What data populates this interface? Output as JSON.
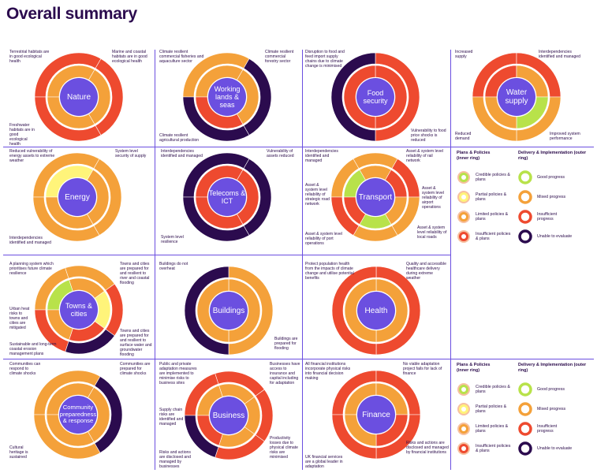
{
  "page_title": "Overall summary",
  "colors": {
    "good": "#b8e24a",
    "partial": "#fff47a",
    "limited": "#f4a13a",
    "insufficient": "#ee4a2f",
    "unable": "#2b0b4e",
    "core": "#6b4fe0"
  },
  "legends": [
    {
      "plans_head": "Plans & Policies (inner ring)",
      "delivery_head": "Delivery & Implementation (outer ring)",
      "plans": [
        {
          "label": "Credible policies & plans",
          "status": "good"
        },
        {
          "label": "Partial policies & plans",
          "status": "partial"
        },
        {
          "label": "Limited policies & plans",
          "status": "limited"
        },
        {
          "label": "Insufficient policies & plans",
          "status": "insufficient"
        }
      ],
      "delivery": [
        {
          "label": "Good progress",
          "status": "good"
        },
        {
          "label": "Mixed progress",
          "status": "limited"
        },
        {
          "label": "Insufficient progress",
          "status": "insufficient"
        },
        {
          "label": "Unable to evaluate",
          "status": "unable"
        }
      ]
    },
    {
      "plans_head": "Plans & Policies (inner ring)",
      "delivery_head": "Delivery & Implementation (outer ring)",
      "plans": [
        {
          "label": "Credible policies & plans",
          "status": "good"
        },
        {
          "label": "Partial policies & plans",
          "status": "partial"
        },
        {
          "label": "Limited policies & plans",
          "status": "limited"
        },
        {
          "label": "Insufficient policies & plans",
          "status": "insufficient"
        }
      ],
      "delivery": [
        {
          "label": "Good progress",
          "status": "good"
        },
        {
          "label": "Mixed progress",
          "status": "limited"
        },
        {
          "label": "Insufficient progress",
          "status": "insufficient"
        },
        {
          "label": "Unable to evaluate",
          "status": "unable"
        }
      ]
    }
  ],
  "chart_data": [
    {
      "type": "radial-status",
      "title": "Nature",
      "outcomes": [
        "Terrestrial habitats are in good ecological health",
        "Marine and coastal habitats are in good ecological health",
        "Freshwater habitats are in good ecological health"
      ],
      "inner": [
        "limited",
        "limited",
        "limited"
      ],
      "outer": [
        "insufficient",
        "insufficient",
        "insufficient"
      ]
    },
    {
      "type": "radial-status",
      "title": "Working lands & seas",
      "outcomes": [
        "Climate resilient commercial fisheries and aquaculture sector",
        "Climate resilient commercial forestry sector",
        "Climate resilient agricultural production"
      ],
      "inner": [
        "limited",
        "limited",
        "insufficient"
      ],
      "outer": [
        "limited",
        "unable",
        "unable"
      ]
    },
    {
      "type": "radial-status",
      "title": "Food security",
      "outcomes": [
        "Disruption to food and feed import supply chains due to climate change is minimised",
        "Vulnerability to food price shocks is reduced"
      ],
      "inner": [
        "insufficient",
        "insufficient"
      ],
      "outer": [
        "insufficient",
        "unable"
      ]
    },
    {
      "type": "radial-status",
      "title": "Water supply",
      "outcomes": [
        "Increased supply",
        "Interdependencies identified and managed",
        "Improved system performance",
        "Reduced demand"
      ],
      "inner": [
        "insufficient",
        "limited",
        "good",
        "limited"
      ],
      "outer": [
        "insufficient",
        "insufficient",
        "limited",
        "limited"
      ]
    },
    {
      "type": "radial-status",
      "title": "Energy",
      "outcomes": [
        "Reduced vulnerability of energy assets to extreme weather",
        "System level security of supply",
        "Interdependencies identified and managed"
      ],
      "inner": [
        "partial",
        "limited",
        "limited"
      ],
      "outer": [
        "limited",
        "limited",
        "limited"
      ]
    },
    {
      "type": "radial-status",
      "title": "Telecoms & ICT",
      "outcomes": [
        "Vulnerability of assets reduced",
        "System level resilience",
        "Interdependencies identified and managed"
      ],
      "inner": [
        "insufficient",
        "insufficient",
        "insufficient"
      ],
      "outer": [
        "unable",
        "unable",
        "unable"
      ]
    },
    {
      "type": "radial-status",
      "title": "Transport",
      "outcomes": [
        "Asset & system level reliability of rail network",
        "Asset & system level reliability of airport operations",
        "Asset & system level reliability of local roads",
        "Asset & system level reliability of port operations",
        "Asset & system level reliability of strategic road network",
        "Interdependencies identified and managed"
      ],
      "inner": [
        "good",
        "limited",
        "insufficient",
        "limited",
        "good",
        "insufficient"
      ],
      "outer": [
        "limited",
        "limited",
        "insufficient",
        "limited",
        "limited",
        "insufficient"
      ]
    },
    {
      "type": "radial-status",
      "title": "Towns & cities",
      "outcomes": [
        "Towns and cities are prepared for and resilient to river and coastal flooding",
        "Towns and cities are prepared for and resilient to surface water and groundwater flooding",
        "Sustainable and long-term coastal erosion management plans",
        "Urban heat risks to towns and cities are mitigated",
        "A planning system which prioritises future climate resilience"
      ],
      "inner": [
        "good",
        "limited",
        "partial",
        "insufficient",
        "limited"
      ],
      "outer": [
        "limited",
        "limited",
        "insufficient",
        "unable",
        "insufficient"
      ]
    },
    {
      "type": "radial-status",
      "title": "Buildings",
      "outcomes": [
        "Buildings are prepared for flooding",
        "Buildings do not overheat"
      ],
      "inner": [
        "limited",
        "limited"
      ],
      "outer": [
        "limited",
        "unable"
      ]
    },
    {
      "type": "radial-status",
      "title": "Health",
      "outcomes": [
        "Quality and accessible healthcare delivery during extreme weather",
        "Protect population health from the impacts of climate change and utilise potential benefits"
      ],
      "inner": [
        "limited",
        "limited"
      ],
      "outer": [
        "insufficient",
        "insufficient"
      ]
    },
    {
      "type": "radial-status",
      "title": "Community preparedness & response",
      "outcomes": [
        "Communities are prepared for climate shocks",
        "Cultural heritage is sustained",
        "Communities can respond to climate shocks"
      ],
      "inner": [
        "limited",
        "limited",
        "limited"
      ],
      "outer": [
        "limited",
        "unable",
        "limited"
      ]
    },
    {
      "type": "radial-status",
      "title": "Business",
      "outcomes": [
        "Businesses have access to insurance and capital including for adaptation",
        "Productivity losses due to physical climate risks are minimised",
        "Risks and actions are disclosed and managed by businesses",
        "Supply chain risks are identified and managed",
        "Public and private adaptation measures are implemented to minimise risks to business sites"
      ],
      "inner": [
        "limited",
        "limited",
        "limited",
        "limited",
        "insufficient"
      ],
      "outer": [
        "insufficient",
        "insufficient",
        "insufficient",
        "insufficient",
        "unable"
      ]
    },
    {
      "type": "radial-status",
      "title": "Finance",
      "outcomes": [
        "No viable adaptation project fails for lack of finance",
        "Risks and actions are disclosed and managed by financial institutions",
        "UK financial services are a global leader in adaptation",
        "All financial institutions incorporate physical risks into financial decision making"
      ],
      "inner": [
        "limited",
        "limited",
        "insufficient",
        "limited"
      ],
      "outer": [
        "insufficient",
        "insufficient",
        "insufficient",
        "insufficient"
      ]
    }
  ]
}
